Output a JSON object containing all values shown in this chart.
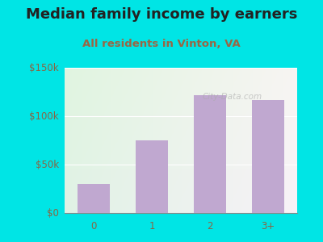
{
  "title": "Median family income by earners",
  "subtitle": "All residents in Vinton, VA",
  "categories": [
    "0",
    "1",
    "2",
    "3+"
  ],
  "values": [
    30000,
    75000,
    122000,
    117000
  ],
  "bar_color": "#C0A8D0",
  "background_outer": "#00E5E5",
  "title_color": "#222222",
  "subtitle_color": "#996644",
  "tick_label_color": "#886644",
  "ylim": [
    0,
    150000
  ],
  "yticks": [
    0,
    50000,
    100000,
    150000
  ],
  "ytick_labels": [
    "$0",
    "$50k",
    "$100k",
    "$150k"
  ],
  "watermark": "City-Data.com",
  "title_fontsize": 13,
  "subtitle_fontsize": 9.5,
  "tick_fontsize": 8.5
}
